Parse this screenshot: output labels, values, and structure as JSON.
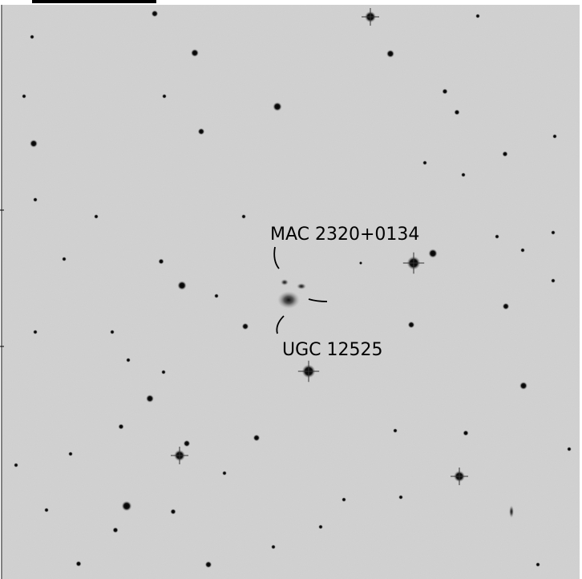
{
  "labels": {
    "galaxy_pair": "MAC 2320+0134",
    "galaxy": "UGC 12525"
  }
}
